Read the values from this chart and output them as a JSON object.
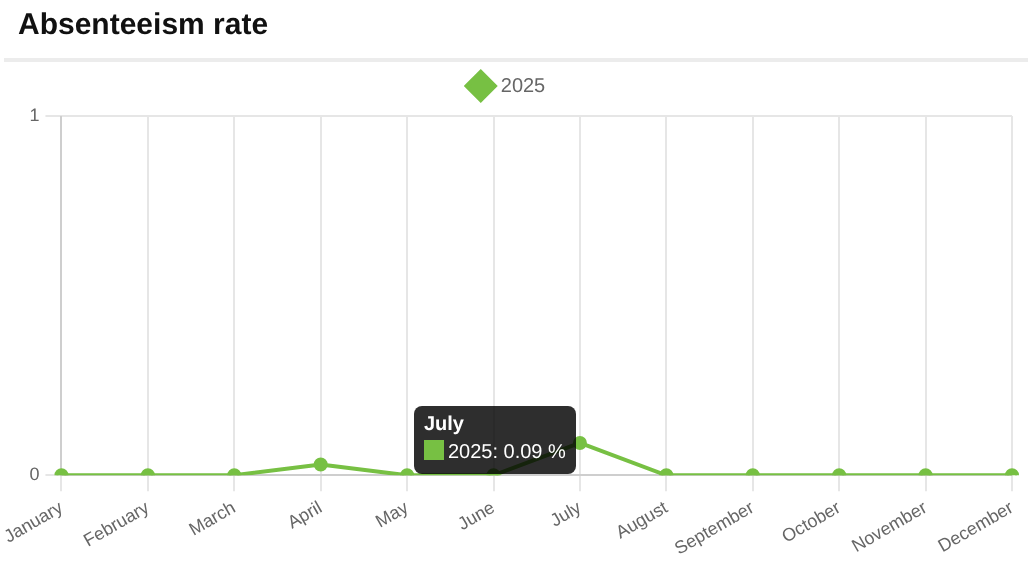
{
  "chart_data": {
    "type": "line",
    "title": "Absenteeism rate",
    "categories": [
      "January",
      "February",
      "March",
      "April",
      "May",
      "June",
      "July",
      "August",
      "September",
      "October",
      "November",
      "December"
    ],
    "series": [
      {
        "name": "2025",
        "color": "#77c043",
        "values": [
          0,
          0,
          0,
          0.03,
          0,
          0,
          0.09,
          0,
          0,
          0,
          0,
          0
        ]
      }
    ],
    "ylim": [
      0,
      1
    ],
    "yticks": [
      0,
      1
    ],
    "grid": true,
    "legend": "top",
    "marker": "circle",
    "line_style": "solid",
    "annotations": [
      "July",
      "2025: 0.09 %"
    ]
  }
}
